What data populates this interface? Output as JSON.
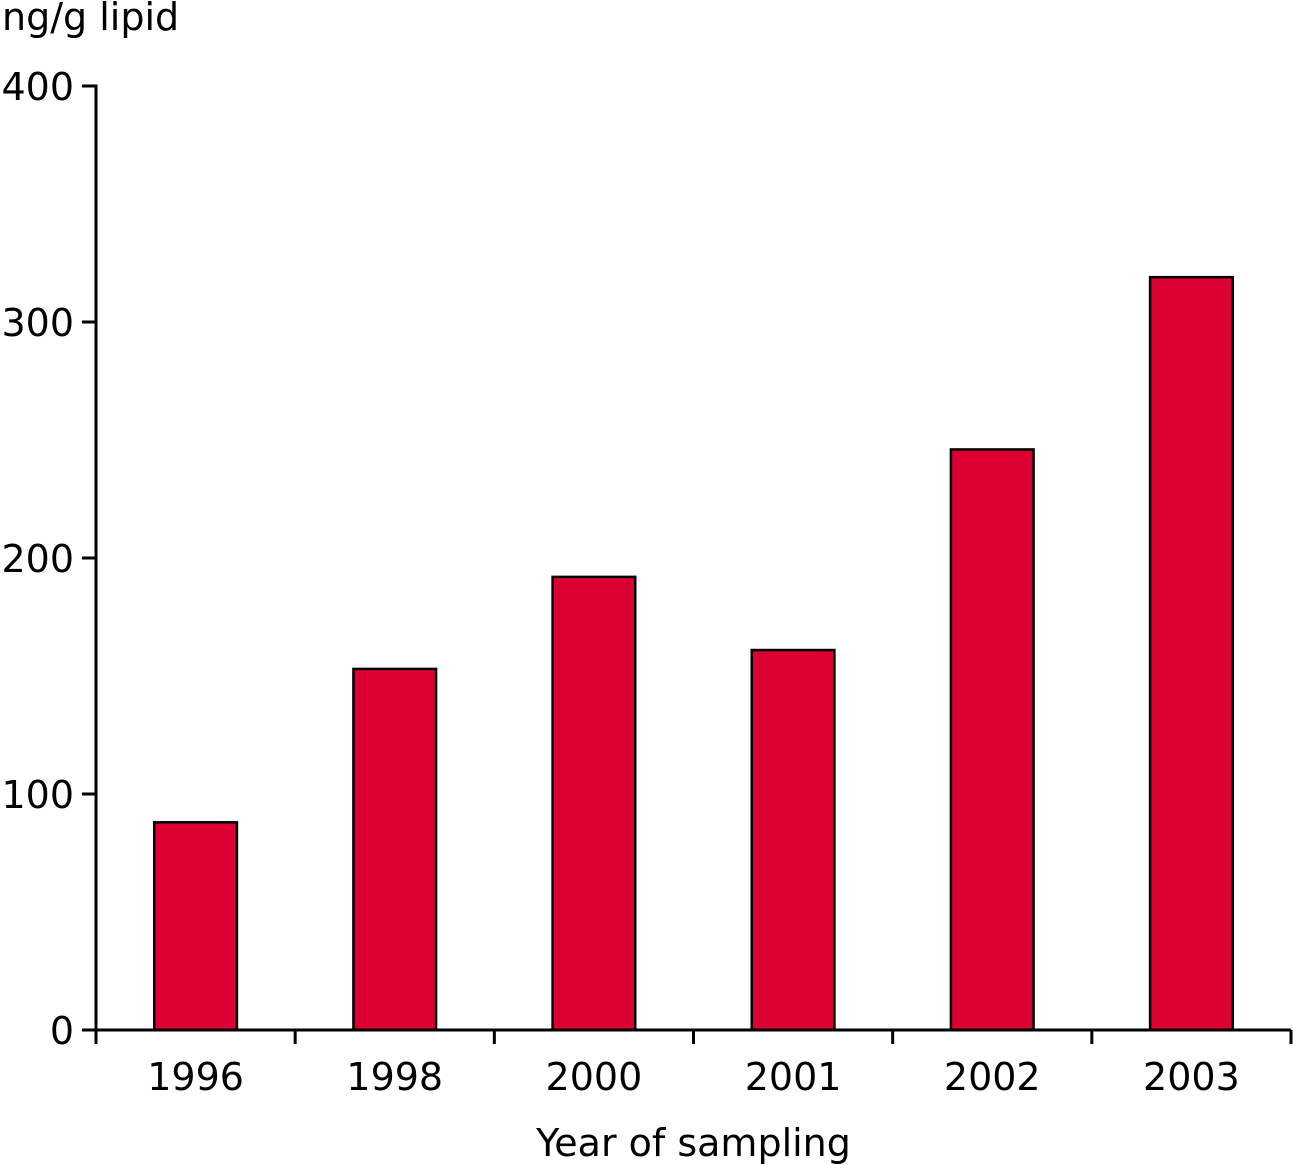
{
  "chart_data": {
    "type": "bar",
    "categories": [
      "1996",
      "1998",
      "2000",
      "2001",
      "2002",
      "2003"
    ],
    "values": [
      88,
      153,
      192,
      161,
      246,
      319
    ],
    "title": "",
    "ylabel": "ng/g lipid",
    "xlabel": "Year of sampling",
    "ylim": [
      0,
      400
    ],
    "yticks": [
      0,
      100,
      200,
      300,
      400
    ],
    "ytick_labels": [
      "0",
      "100",
      "200",
      "300",
      "400"
    ],
    "grid": false,
    "legend": "none",
    "bar_color": "#dc0032"
  }
}
